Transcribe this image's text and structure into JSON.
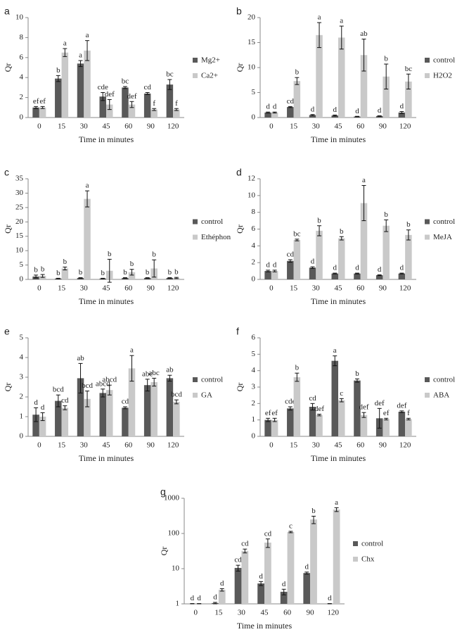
{
  "chart_data": [
    {
      "type": "bar",
      "panel": "a",
      "xlabel": "Time in minutes",
      "ylabel": "Qr",
      "legend": "right",
      "categories": [
        "0",
        "15",
        "30",
        "45",
        "60",
        "90",
        "120"
      ],
      "ylim": [
        0,
        10
      ],
      "yticks": [
        0,
        2,
        4,
        6,
        8,
        10
      ],
      "series": [
        {
          "name": "Mg2+",
          "color": "#595959",
          "values": [
            1.0,
            3.9,
            5.4,
            2.1,
            3.0,
            2.4,
            3.3
          ],
          "errors": [
            0.1,
            0.3,
            0.3,
            0.4,
            0.1,
            0.1,
            0.5
          ],
          "letters": [
            "ef",
            "b",
            "a",
            "cde",
            "bc",
            "cd",
            "bc"
          ]
        },
        {
          "name": "Ca2+",
          "color": "#c9c9c9",
          "values": [
            1.0,
            6.5,
            6.7,
            1.3,
            1.3,
            0.8,
            0.8
          ],
          "errors": [
            0.1,
            0.4,
            1.0,
            0.5,
            0.3,
            0.1,
            0.1
          ],
          "letters": [
            "ef",
            "a",
            "a",
            "def",
            "def",
            "f",
            "f"
          ]
        }
      ]
    },
    {
      "type": "bar",
      "panel": "b",
      "xlabel": "Time in minutes",
      "ylabel": "Qr",
      "legend": "right",
      "categories": [
        "0",
        "15",
        "30",
        "45",
        "60",
        "90",
        "120"
      ],
      "ylim": [
        0,
        20
      ],
      "yticks": [
        0,
        5,
        10,
        15,
        20
      ],
      "series": [
        {
          "name": "control",
          "color": "#595959",
          "values": [
            1.0,
            2.1,
            0.5,
            0.4,
            0.2,
            0.3,
            1.0
          ],
          "errors": [
            0.1,
            0.1,
            0.1,
            0.1,
            0.05,
            0.05,
            0.2
          ],
          "letters": [
            "d",
            "cd",
            "d",
            "d",
            "d",
            "d",
            "d"
          ]
        },
        {
          "name": "H2O2",
          "color": "#c9c9c9",
          "values": [
            1.0,
            7.3,
            16.5,
            16.0,
            12.5,
            8.2,
            7.2
          ],
          "errors": [
            0.1,
            0.7,
            2.5,
            2.3,
            3.2,
            2.5,
            1.5
          ],
          "letters": [
            "d",
            "b",
            "a",
            "a",
            "ab",
            "b",
            "bc"
          ]
        }
      ]
    },
    {
      "type": "bar",
      "panel": "c",
      "xlabel": "Time in minutes",
      "ylabel": "Qr",
      "legend": "right",
      "categories": [
        "0",
        "15",
        "30",
        "45",
        "60",
        "90",
        "120"
      ],
      "ylim": [
        0,
        35
      ],
      "yticks": [
        0,
        5,
        10,
        15,
        20,
        25,
        30,
        35
      ],
      "series": [
        {
          "name": "control",
          "color": "#595959",
          "values": [
            1.0,
            0.3,
            0.5,
            0.3,
            0.5,
            0.5,
            0.5
          ],
          "errors": [
            0.5,
            0.1,
            0.1,
            0.1,
            0.1,
            0.1,
            0.1
          ],
          "letters": [
            "b",
            "b",
            "b",
            "b",
            "b",
            "b",
            "b"
          ]
        },
        {
          "name": "Ethéphon",
          "color": "#c9c9c9",
          "values": [
            1.2,
            3.8,
            28.0,
            3.0,
            2.5,
            3.8,
            0.5
          ],
          "errors": [
            0.5,
            0.5,
            2.8,
            4.0,
            1.0,
            3.0,
            0.2
          ],
          "letters": [
            "b",
            "b",
            "a",
            "b",
            "b",
            "b",
            "b"
          ]
        }
      ]
    },
    {
      "type": "bar",
      "panel": "d",
      "xlabel": "Time in minutes",
      "ylabel": "Qr",
      "legend": "right",
      "categories": [
        "0",
        "15",
        "30",
        "45",
        "60",
        "90",
        "120"
      ],
      "ylim": [
        0,
        12
      ],
      "yticks": [
        0,
        2,
        4,
        6,
        8,
        10,
        12
      ],
      "series": [
        {
          "name": "control",
          "color": "#595959",
          "values": [
            1.0,
            2.2,
            1.4,
            0.7,
            0.7,
            0.5,
            0.7
          ],
          "errors": [
            0.1,
            0.15,
            0.1,
            0.05,
            0.05,
            0.05,
            0.05
          ],
          "letters": [
            "d",
            "cd",
            "d",
            "d",
            "d",
            "d",
            "d"
          ]
        },
        {
          "name": "MeJA",
          "color": "#c9c9c9",
          "values": [
            1.0,
            4.7,
            5.8,
            4.9,
            9.1,
            6.4,
            5.3
          ],
          "errors": [
            0.1,
            0.1,
            0.6,
            0.2,
            2.1,
            0.7,
            0.6
          ],
          "letters": [
            "d",
            "bc",
            "b",
            "b",
            "a",
            "b",
            "b"
          ]
        }
      ]
    },
    {
      "type": "bar",
      "panel": "e",
      "xlabel": "Time in minutes",
      "ylabel": "Qr",
      "legend": "right",
      "categories": [
        "0",
        "15",
        "30",
        "45",
        "60",
        "90",
        "120"
      ],
      "ylim": [
        0,
        5
      ],
      "yticks": [
        0,
        1,
        2,
        3,
        4,
        5
      ],
      "series": [
        {
          "name": "control",
          "color": "#595959",
          "values": [
            1.1,
            1.8,
            2.95,
            2.2,
            1.45,
            2.6,
            2.95
          ],
          "errors": [
            0.35,
            0.3,
            0.75,
            0.2,
            0.05,
            0.3,
            0.15
          ],
          "letters": [
            "d",
            "bcd",
            "ab",
            "abcd",
            "cd",
            "abc",
            "ab"
          ]
        },
        {
          "name": "GA",
          "color": "#c9c9c9",
          "values": [
            1.0,
            1.45,
            1.9,
            2.35,
            3.45,
            2.75,
            1.75
          ],
          "errors": [
            0.2,
            0.1,
            0.4,
            0.25,
            0.65,
            0.2,
            0.1
          ],
          "letters": [
            "d",
            "cd",
            "bcd",
            "abcd",
            "a",
            "abc",
            "bcd"
          ]
        }
      ]
    },
    {
      "type": "bar",
      "panel": "f",
      "xlabel": "Time in minutes",
      "ylabel": "Qr",
      "legend": "right",
      "categories": [
        "0",
        "15",
        "30",
        "45",
        "60",
        "90",
        "120"
      ],
      "ylim": [
        0,
        6
      ],
      "yticks": [
        0,
        1,
        2,
        3,
        4,
        5,
        6
      ],
      "series": [
        {
          "name": "control",
          "color": "#595959",
          "values": [
            1.0,
            1.7,
            1.8,
            4.6,
            3.4,
            1.1,
            1.5
          ],
          "errors": [
            0.1,
            0.1,
            0.2,
            0.3,
            0.1,
            0.6,
            0.05
          ],
          "letters": [
            "ef",
            "cde",
            "cd",
            "a",
            "b",
            "def",
            "def"
          ]
        },
        {
          "name": "ABA",
          "color": "#c9c9c9",
          "values": [
            1.0,
            3.6,
            1.3,
            2.2,
            1.3,
            1.05,
            1.05
          ],
          "errors": [
            0.1,
            0.25,
            0.05,
            0.1,
            0.15,
            0.05,
            0.05
          ],
          "letters": [
            "ef",
            "b",
            "def",
            "c",
            "def",
            "ef",
            "f"
          ]
        }
      ]
    },
    {
      "type": "bar",
      "panel": "g",
      "xlabel": "Time in minutes",
      "ylabel": "Qr",
      "legend": "right",
      "log_scale": true,
      "categories": [
        "0",
        "15",
        "30",
        "45",
        "60",
        "90",
        "120"
      ],
      "ylim": [
        1,
        1000
      ],
      "yticks": [
        1,
        10,
        100,
        1000
      ],
      "series": [
        {
          "name": "control",
          "color": "#595959",
          "values": [
            1.0,
            1.05,
            10.5,
            3.8,
            2.2,
            7.5,
            1.0
          ],
          "errors": [
            0.02,
            0.05,
            2,
            0.5,
            0.4,
            0.5,
            0.02
          ],
          "letters": [
            "d",
            "d",
            "cd",
            "d",
            "d",
            "d",
            "d"
          ]
        },
        {
          "name": "Chx",
          "color": "#c9c9c9",
          "values": [
            1.0,
            2.5,
            32,
            55,
            110,
            250,
            480
          ],
          "errors": [
            0.02,
            0.2,
            4,
            15,
            5,
            60,
            60
          ],
          "letters": [
            "d",
            "d",
            "cd",
            "cd",
            "c",
            "b",
            "a"
          ]
        }
      ]
    }
  ]
}
